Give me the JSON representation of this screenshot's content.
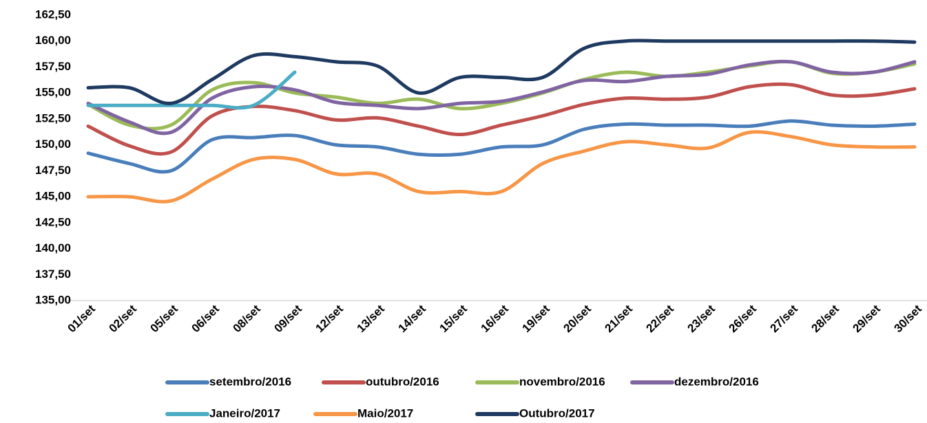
{
  "chart_data": {
    "type": "line",
    "categories": [
      "01/set",
      "02/set",
      "05/set",
      "06/set",
      "08/set",
      "09/set",
      "12/set",
      "13/set",
      "14/set",
      "15/set",
      "16/set",
      "19/set",
      "20/set",
      "21/set",
      "22/set",
      "23/set",
      "26/set",
      "27/set",
      "28/set",
      "29/set",
      "30/set"
    ],
    "series": [
      {
        "name": "setembro/2016",
        "color": "#4a7ebb",
        "values": [
          149.2,
          148.2,
          147.5,
          150.5,
          150.7,
          150.9,
          150.0,
          149.8,
          149.1,
          149.1,
          149.8,
          150.0,
          151.5,
          152.0,
          151.9,
          151.9,
          151.8,
          152.3,
          151.9,
          151.8,
          152.0
        ]
      },
      {
        "name": "outubro/2016",
        "color": "#c0504d",
        "values": [
          151.8,
          149.9,
          149.3,
          152.8,
          153.7,
          153.3,
          152.4,
          152.6,
          151.8,
          151.0,
          151.9,
          152.8,
          153.9,
          154.5,
          154.4,
          154.6,
          155.6,
          155.8,
          154.8,
          154.8,
          155.4
        ]
      },
      {
        "name": "novembro/2016",
        "color": "#9bbb59",
        "values": [
          153.9,
          151.9,
          151.9,
          155.3,
          156.0,
          155.0,
          154.6,
          154.0,
          154.4,
          153.5,
          154.0,
          155.0,
          156.3,
          157.0,
          156.6,
          157.0,
          157.6,
          158.0,
          156.9,
          157.0,
          157.8
        ]
      },
      {
        "name": "dezembro/2016",
        "color": "#8064a2",
        "values": [
          154.0,
          152.2,
          151.2,
          154.5,
          155.6,
          155.3,
          154.1,
          153.8,
          153.5,
          154.0,
          154.2,
          155.1,
          156.2,
          156.1,
          156.6,
          156.8,
          157.7,
          158.0,
          157.0,
          157.0,
          158.0
        ]
      },
      {
        "name": "Janeiro/2017",
        "color": "#4bacc6",
        "values": [
          153.8,
          153.8,
          153.8,
          153.8,
          153.8,
          157.0,
          null,
          null,
          null,
          null,
          null,
          null,
          null,
          null,
          null,
          null,
          null,
          null,
          null,
          null,
          null
        ]
      },
      {
        "name": "Maio/2017",
        "color": "#f79646",
        "values": [
          145.0,
          145.0,
          144.6,
          146.7,
          148.6,
          148.6,
          147.2,
          147.2,
          145.5,
          145.5,
          145.5,
          148.2,
          149.4,
          150.3,
          150.0,
          149.7,
          151.2,
          150.8,
          150.0,
          149.8,
          149.8
        ]
      },
      {
        "name": "Outubro/2017",
        "color": "#1f3a60",
        "values": [
          155.5,
          155.5,
          154.0,
          156.3,
          158.6,
          158.5,
          158.0,
          157.6,
          155.0,
          156.5,
          156.5,
          156.5,
          159.3,
          160.0,
          160.0,
          160.0,
          160.0,
          160.0,
          160.0,
          160.0,
          159.9
        ]
      }
    ],
    "ylim": [
      135,
      162.5
    ],
    "yticks": [
      {
        "value": 135,
        "label": "135,00"
      },
      {
        "value": 137.5,
        "label": "137,50"
      },
      {
        "value": 140,
        "label": "140,00"
      },
      {
        "value": 142.5,
        "label": "142,50"
      },
      {
        "value": 145,
        "label": "145,00"
      },
      {
        "value": 147.5,
        "label": "147,50"
      },
      {
        "value": 150,
        "label": "150,00"
      },
      {
        "value": 152.5,
        "label": "152,50"
      },
      {
        "value": 155,
        "label": "155,00"
      },
      {
        "value": 157.5,
        "label": "157,50"
      },
      {
        "value": 160,
        "label": "160,00"
      },
      {
        "value": 162.5,
        "label": "162,50"
      }
    ],
    "grid": false
  }
}
